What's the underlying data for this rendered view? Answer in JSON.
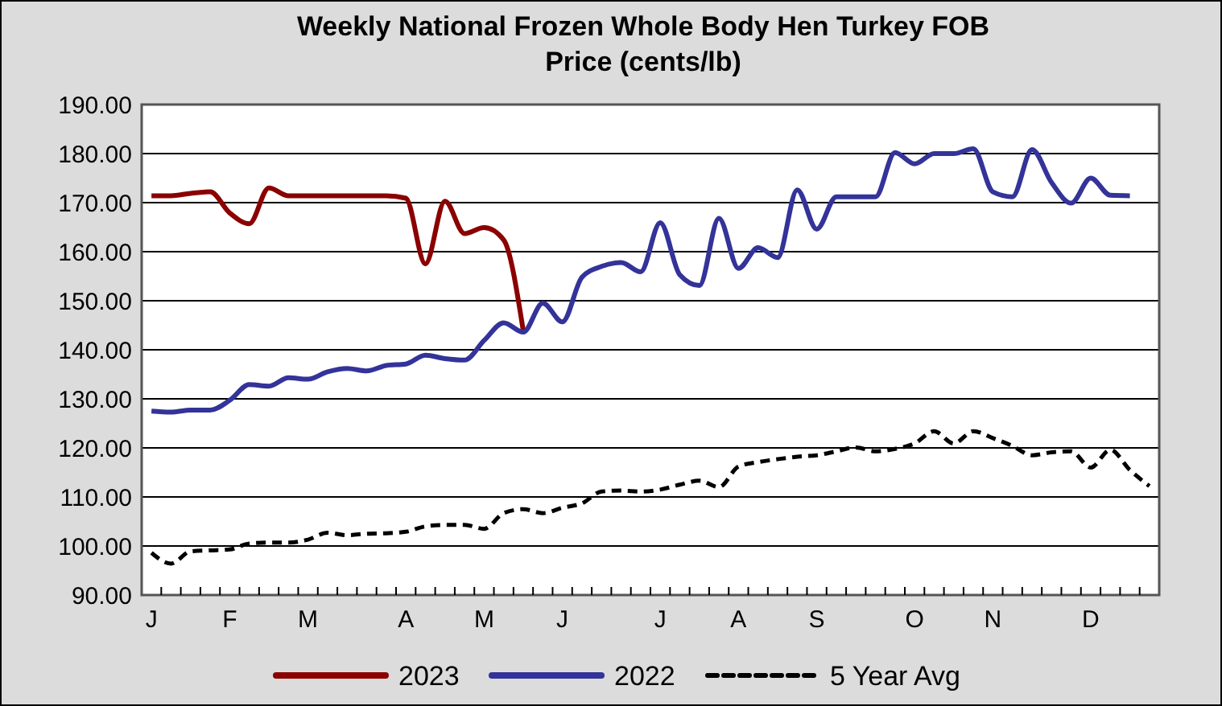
{
  "chart_data": {
    "type": "line",
    "title": "Weekly National Frozen Whole Body Hen Turkey FOB Price (cents/lb)",
    "categories": [
      "J",
      null,
      null,
      null,
      "F",
      null,
      null,
      null,
      "M",
      null,
      null,
      null,
      null,
      "A",
      null,
      null,
      null,
      "M",
      null,
      null,
      null,
      "J",
      null,
      null,
      null,
      null,
      "J",
      null,
      null,
      null,
      "A",
      null,
      null,
      null,
      "S",
      null,
      null,
      null,
      null,
      "O",
      null,
      null,
      null,
      "N",
      null,
      null,
      null,
      null,
      "D",
      null,
      null,
      null
    ],
    "ylim": [
      90,
      190
    ],
    "yticks": [
      {
        "value": 90,
        "label": "90.00"
      },
      {
        "value": 100,
        "label": "100.00"
      },
      {
        "value": 110,
        "label": "110.00"
      },
      {
        "value": 120,
        "label": "120.00"
      },
      {
        "value": 130,
        "label": "130.00"
      },
      {
        "value": 140,
        "label": "140.00"
      },
      {
        "value": 150,
        "label": "150.00"
      },
      {
        "value": 160,
        "label": "160.00"
      },
      {
        "value": 170,
        "label": "170.00"
      },
      {
        "value": 180,
        "label": "180.00"
      },
      {
        "value": 190,
        "label": "190.00"
      }
    ],
    "grid": "y",
    "legend": "bottom",
    "series": [
      {
        "name": "2023",
        "color": "#8b0000",
        "line_style": "solid",
        "values": [
          171.4,
          171.4,
          171.9,
          172.2,
          167.9,
          165.7,
          173,
          171.4,
          171.4,
          171.4,
          171.4,
          171.4,
          171.4,
          170.9,
          157.5,
          170.3,
          163.7,
          164.9,
          162.4,
          143.9,
          null,
          null,
          null,
          null,
          null,
          null,
          null,
          null,
          null,
          null,
          null,
          null,
          null,
          null,
          null,
          null,
          null,
          null,
          null,
          null,
          null,
          null,
          null,
          null,
          null,
          null,
          null,
          null,
          null,
          null,
          null,
          null
        ]
      },
      {
        "name": "2022",
        "color": "#333399",
        "line_style": "solid",
        "values": [
          127.5,
          127.3,
          127.7,
          127.7,
          129.7,
          132.9,
          132.6,
          134.3,
          134,
          135.5,
          136.2,
          135.7,
          136.8,
          137.1,
          138.9,
          138.2,
          137.9,
          141.9,
          145.5,
          143.6,
          149.5,
          145.7,
          154.8,
          157,
          157.8,
          155.9,
          165.9,
          155.3,
          153.1,
          166.8,
          156.6,
          160.8,
          158.8,
          172.6,
          164.6,
          171.2,
          171.2,
          171.2,
          180.2,
          177.9,
          180,
          180,
          181,
          172.2,
          171.2,
          180.8,
          174.1,
          169.9,
          175,
          171.5,
          171.4,
          null
        ]
      },
      {
        "name": "5 Year Avg",
        "color": "#000000",
        "line_style": "dashed",
        "values": [
          98.6,
          96.4,
          98.9,
          99.1,
          99.3,
          100.5,
          100.7,
          100.7,
          101.3,
          102.7,
          102.2,
          102.5,
          102.6,
          102.9,
          104,
          104.3,
          104.3,
          103.5,
          106.7,
          107.5,
          106.7,
          107.8,
          108.7,
          111.1,
          111.3,
          111.1,
          111.5,
          112.5,
          113.3,
          112,
          116.2,
          117.1,
          117.7,
          118.2,
          118.5,
          119.3,
          120.1,
          119.3,
          119.8,
          120.9,
          123.4,
          120.9,
          123.4,
          122,
          120.4,
          118.5,
          119.1,
          119.3,
          116,
          119.6,
          115.5,
          112.2
        ]
      }
    ]
  }
}
